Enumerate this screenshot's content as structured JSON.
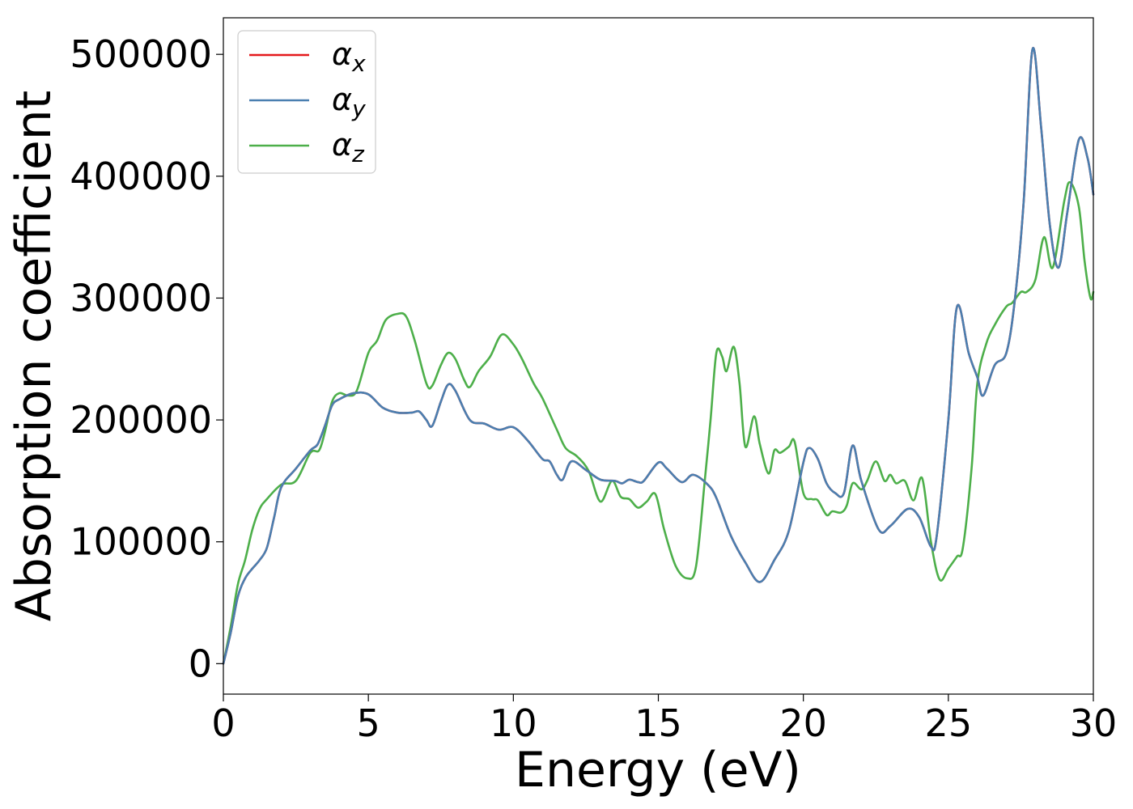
{
  "chart_data": {
    "type": "line",
    "title": "",
    "xlabel": "Energy (eV)",
    "ylabel": "Absorption coefficient",
    "xlim": [
      0,
      30
    ],
    "ylim": [
      -25000,
      530000
    ],
    "x_ticks": [
      0,
      5,
      10,
      15,
      20,
      25,
      30
    ],
    "y_ticks": [
      0,
      100000,
      200000,
      300000,
      400000,
      500000
    ],
    "grid": false,
    "legend_position": "top-left",
    "series": [
      {
        "name": "αx",
        "symbol": "α",
        "subscript": "x",
        "color": "#e41a1c",
        "points": [
          [
            0,
            0
          ],
          [
            0.25,
            25000
          ],
          [
            0.5,
            55000
          ],
          [
            0.75,
            70000
          ],
          [
            1,
            78000
          ],
          [
            1.25,
            85000
          ],
          [
            1.5,
            95000
          ],
          [
            1.75,
            120000
          ],
          [
            2,
            145000
          ],
          [
            2.5,
            160000
          ],
          [
            3,
            175000
          ],
          [
            3.25,
            180000
          ],
          [
            3.5,
            195000
          ],
          [
            3.75,
            212000
          ],
          [
            4,
            217000
          ],
          [
            4.5,
            222000
          ],
          [
            5,
            221000
          ],
          [
            5.5,
            210000
          ],
          [
            6,
            206000
          ],
          [
            6.5,
            206000
          ],
          [
            6.75,
            207000
          ],
          [
            7,
            200000
          ],
          [
            7.2,
            195000
          ],
          [
            7.5,
            215000
          ],
          [
            7.75,
            229000
          ],
          [
            8,
            224000
          ],
          [
            8.5,
            200000
          ],
          [
            9,
            197000
          ],
          [
            9.5,
            192000
          ],
          [
            10,
            194000
          ],
          [
            10.5,
            183000
          ],
          [
            11,
            168000
          ],
          [
            11.25,
            166000
          ],
          [
            11.5,
            155000
          ],
          [
            11.7,
            151000
          ],
          [
            12,
            166000
          ],
          [
            12.5,
            159000
          ],
          [
            13,
            151000
          ],
          [
            13.5,
            150000
          ],
          [
            13.75,
            148000
          ],
          [
            14,
            151000
          ],
          [
            14.3,
            149000
          ],
          [
            14.5,
            150000
          ],
          [
            15,
            165000
          ],
          [
            15.3,
            160000
          ],
          [
            15.8,
            149000
          ],
          [
            16.2,
            155000
          ],
          [
            16.7,
            147000
          ],
          [
            17,
            136000
          ],
          [
            17.5,
            105000
          ],
          [
            18,
            83000
          ],
          [
            18.5,
            67000
          ],
          [
            19,
            85000
          ],
          [
            19.5,
            109000
          ],
          [
            20,
            165000
          ],
          [
            20.2,
            177000
          ],
          [
            20.5,
            168000
          ],
          [
            20.8,
            148000
          ],
          [
            21.1,
            140000
          ],
          [
            21.4,
            140000
          ],
          [
            21.7,
            179000
          ],
          [
            22,
            150000
          ],
          [
            22.6,
            110000
          ],
          [
            23,
            113000
          ],
          [
            23.6,
            127000
          ],
          [
            24,
            120000
          ],
          [
            24.4,
            96000
          ],
          [
            24.6,
            105000
          ],
          [
            25,
            200000
          ],
          [
            25.3,
            293000
          ],
          [
            25.7,
            255000
          ],
          [
            26,
            235000
          ],
          [
            26.2,
            220000
          ],
          [
            26.6,
            245000
          ],
          [
            27,
            255000
          ],
          [
            27.3,
            300000
          ],
          [
            27.6,
            380000
          ],
          [
            27.9,
            504000
          ],
          [
            28.2,
            440000
          ],
          [
            28.5,
            360000
          ],
          [
            28.8,
            325000
          ],
          [
            29.1,
            370000
          ],
          [
            29.5,
            430000
          ],
          [
            29.8,
            415000
          ],
          [
            30,
            385000
          ]
        ]
      },
      {
        "name": "αy",
        "symbol": "α",
        "subscript": "y",
        "color": "#4a7fb0",
        "points": [
          [
            0,
            0
          ],
          [
            0.25,
            25000
          ],
          [
            0.5,
            55000
          ],
          [
            0.75,
            70000
          ],
          [
            1,
            78000
          ],
          [
            1.25,
            85000
          ],
          [
            1.5,
            95000
          ],
          [
            1.75,
            120000
          ],
          [
            2,
            145000
          ],
          [
            2.5,
            160000
          ],
          [
            3,
            175000
          ],
          [
            3.25,
            180000
          ],
          [
            3.5,
            195000
          ],
          [
            3.75,
            212000
          ],
          [
            4,
            217000
          ],
          [
            4.5,
            222000
          ],
          [
            5,
            221000
          ],
          [
            5.5,
            210000
          ],
          [
            6,
            206000
          ],
          [
            6.5,
            206000
          ],
          [
            6.75,
            207000
          ],
          [
            7,
            200000
          ],
          [
            7.2,
            195000
          ],
          [
            7.5,
            215000
          ],
          [
            7.75,
            229000
          ],
          [
            8,
            224000
          ],
          [
            8.5,
            200000
          ],
          [
            9,
            197000
          ],
          [
            9.5,
            192000
          ],
          [
            10,
            194000
          ],
          [
            10.5,
            183000
          ],
          [
            11,
            168000
          ],
          [
            11.25,
            166000
          ],
          [
            11.5,
            155000
          ],
          [
            11.7,
            151000
          ],
          [
            12,
            166000
          ],
          [
            12.5,
            159000
          ],
          [
            13,
            151000
          ],
          [
            13.5,
            150000
          ],
          [
            13.75,
            148000
          ],
          [
            14,
            151000
          ],
          [
            14.3,
            149000
          ],
          [
            14.5,
            150000
          ],
          [
            15,
            165000
          ],
          [
            15.3,
            160000
          ],
          [
            15.8,
            149000
          ],
          [
            16.2,
            155000
          ],
          [
            16.7,
            147000
          ],
          [
            17,
            136000
          ],
          [
            17.5,
            105000
          ],
          [
            18,
            83000
          ],
          [
            18.5,
            67000
          ],
          [
            19,
            85000
          ],
          [
            19.5,
            109000
          ],
          [
            20,
            165000
          ],
          [
            20.2,
            177000
          ],
          [
            20.5,
            168000
          ],
          [
            20.8,
            148000
          ],
          [
            21.1,
            140000
          ],
          [
            21.4,
            140000
          ],
          [
            21.7,
            179000
          ],
          [
            22,
            150000
          ],
          [
            22.6,
            110000
          ],
          [
            23,
            113000
          ],
          [
            23.6,
            127000
          ],
          [
            24,
            120000
          ],
          [
            24.4,
            96000
          ],
          [
            24.6,
            105000
          ],
          [
            25,
            200000
          ],
          [
            25.3,
            293000
          ],
          [
            25.7,
            255000
          ],
          [
            26,
            235000
          ],
          [
            26.2,
            220000
          ],
          [
            26.6,
            245000
          ],
          [
            27,
            255000
          ],
          [
            27.3,
            300000
          ],
          [
            27.6,
            380000
          ],
          [
            27.9,
            504000
          ],
          [
            28.2,
            440000
          ],
          [
            28.5,
            360000
          ],
          [
            28.8,
            325000
          ],
          [
            29.1,
            370000
          ],
          [
            29.5,
            430000
          ],
          [
            29.8,
            415000
          ],
          [
            30,
            385000
          ]
        ]
      },
      {
        "name": "αz",
        "symbol": "α",
        "subscript": "z",
        "color": "#4daf4a",
        "points": [
          [
            0,
            0
          ],
          [
            0.25,
            30000
          ],
          [
            0.5,
            65000
          ],
          [
            0.75,
            85000
          ],
          [
            1,
            110000
          ],
          [
            1.25,
            127000
          ],
          [
            1.5,
            135000
          ],
          [
            2,
            147000
          ],
          [
            2.5,
            150000
          ],
          [
            3,
            173000
          ],
          [
            3.3,
            175000
          ],
          [
            3.5,
            190000
          ],
          [
            3.75,
            215000
          ],
          [
            4,
            222000
          ],
          [
            4.3,
            220000
          ],
          [
            4.6,
            224000
          ],
          [
            5,
            255000
          ],
          [
            5.3,
            265000
          ],
          [
            5.6,
            282000
          ],
          [
            6,
            287000
          ],
          [
            6.3,
            285000
          ],
          [
            6.6,
            265000
          ],
          [
            7,
            230000
          ],
          [
            7.2,
            228000
          ],
          [
            7.5,
            245000
          ],
          [
            7.75,
            255000
          ],
          [
            8,
            250000
          ],
          [
            8.3,
            233000
          ],
          [
            8.5,
            227000
          ],
          [
            8.8,
            240000
          ],
          [
            9.2,
            252000
          ],
          [
            9.6,
            270000
          ],
          [
            10,
            262000
          ],
          [
            10.3,
            250000
          ],
          [
            10.7,
            230000
          ],
          [
            11,
            218000
          ],
          [
            11.5,
            192000
          ],
          [
            11.8,
            177000
          ],
          [
            12.2,
            170000
          ],
          [
            12.6,
            158000
          ],
          [
            13,
            133000
          ],
          [
            13.4,
            150000
          ],
          [
            13.7,
            137000
          ],
          [
            14,
            135000
          ],
          [
            14.3,
            128000
          ],
          [
            14.6,
            133000
          ],
          [
            14.9,
            139000
          ],
          [
            15.2,
            110000
          ],
          [
            15.6,
            80000
          ],
          [
            16,
            70000
          ],
          [
            16.3,
            80000
          ],
          [
            16.6,
            150000
          ],
          [
            16.8,
            200000
          ],
          [
            17,
            255000
          ],
          [
            17.2,
            252000
          ],
          [
            17.35,
            240000
          ],
          [
            17.6,
            260000
          ],
          [
            17.8,
            230000
          ],
          [
            18,
            178000
          ],
          [
            18.3,
            203000
          ],
          [
            18.5,
            180000
          ],
          [
            18.8,
            156000
          ],
          [
            19,
            175000
          ],
          [
            19.2,
            173000
          ],
          [
            19.5,
            178000
          ],
          [
            19.7,
            182000
          ],
          [
            20,
            140000
          ],
          [
            20.3,
            135000
          ],
          [
            20.5,
            134000
          ],
          [
            20.8,
            122000
          ],
          [
            21,
            125000
          ],
          [
            21.3,
            124000
          ],
          [
            21.5,
            130000
          ],
          [
            21.7,
            148000
          ],
          [
            22,
            143000
          ],
          [
            22.2,
            150000
          ],
          [
            22.5,
            166000
          ],
          [
            22.8,
            150000
          ],
          [
            23,
            155000
          ],
          [
            23.2,
            148000
          ],
          [
            23.5,
            150000
          ],
          [
            23.8,
            134000
          ],
          [
            24.1,
            152000
          ],
          [
            24.4,
            100000
          ],
          [
            24.7,
            69000
          ],
          [
            25,
            78000
          ],
          [
            25.3,
            88000
          ],
          [
            25.5,
            95000
          ],
          [
            25.8,
            160000
          ],
          [
            26,
            230000
          ],
          [
            26.3,
            262000
          ],
          [
            26.6,
            278000
          ],
          [
            27,
            293000
          ],
          [
            27.2,
            296000
          ],
          [
            27.5,
            305000
          ],
          [
            27.7,
            305000
          ],
          [
            28,
            315000
          ],
          [
            28.3,
            350000
          ],
          [
            28.6,
            325000
          ],
          [
            29,
            380000
          ],
          [
            29.2,
            395000
          ],
          [
            29.5,
            375000
          ],
          [
            29.7,
            330000
          ],
          [
            29.9,
            300000
          ],
          [
            30,
            305000
          ]
        ]
      }
    ]
  }
}
